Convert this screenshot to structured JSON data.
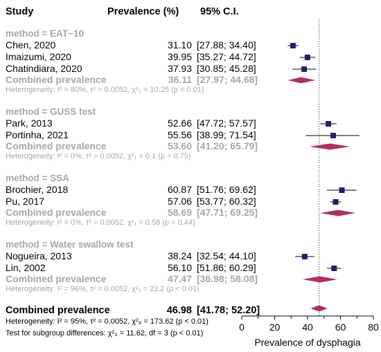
{
  "header": {
    "study": "Study",
    "prevalence": "Prevalence (%)",
    "ci": "95% C.I."
  },
  "groups": [
    {
      "label": "method = EAT−10",
      "studies": [
        {
          "name": "Chen, 2020",
          "est": "31.10",
          "ci": "[27.88; 34.40]"
        },
        {
          "name": "Imaizumi, 2020",
          "est": "39.95",
          "ci": "[35.27; 44.72]"
        },
        {
          "name": "Chatindiara, 2020",
          "est": "37.93",
          "ci": "[30.85; 45.28]"
        }
      ],
      "combined": {
        "label": "Combined prevalence",
        "est": "36.11",
        "ci": "[27.97; 44.68]"
      },
      "het": "Heterogeneity: I² = 80%, τ² = 0.0052, χ²₂ = 10.25 (p < 0.01)"
    },
    {
      "label": "method = GUSS test",
      "studies": [
        {
          "name": "Park, 2013",
          "est": "52.66",
          "ci": "[47.72; 57.57]"
        },
        {
          "name": "Portinha, 2021",
          "est": "55.56",
          "ci": "[38.99; 71.54]"
        }
      ],
      "combined": {
        "label": "Combined prevalence",
        "est": "53.60",
        "ci": "[41.20; 65.79]"
      },
      "het": "Heterogeneity: I² = 0%, τ² = 0.0052, χ²₁ = 0.1 (p = 0.75)"
    },
    {
      "label": "method = SSA",
      "studies": [
        {
          "name": "Brochier, 2018",
          "est": "60.87",
          "ci": "[51.76; 69.62]"
        },
        {
          "name": "Pu, 2017",
          "est": "57.06",
          "ci": "[53.77; 60.32]"
        }
      ],
      "combined": {
        "label": "Combined prevalence",
        "est": "58.69",
        "ci": "[47.71; 69.25]"
      },
      "het": "Heterogeneity: I² = 0%, τ² = 0.0052, χ²₁ = 0.58 (p = 0.44)"
    },
    {
      "label": "method = Water swallow test",
      "studies": [
        {
          "name": "Nogueira, 2013",
          "est": "38.24",
          "ci": "[32.54; 44.10]"
        },
        {
          "name": "Lin, 2002",
          "est": "56.10",
          "ci": "[51.86; 60.29]"
        }
      ],
      "combined": {
        "label": "Combined prevalence",
        "est": "47.47",
        "ci": "[36.98; 58.08]"
      },
      "het": "Heterogeneity: I² = 96%, τ² = 0.0052, χ²₁ = 23.2 (p < 0.01)"
    }
  ],
  "overall": {
    "label": "Combined prevalence",
    "est": "46.98",
    "ci": "[41.78; 52.20]",
    "het": "Heterogeneity: I² = 95%, τ² = 0.0052, χ²₈ = 173.62 (p < 0.01)",
    "subgroup_test": "Test for subgroup differences: χ²₃ = 11.62, df = 3 (p < 0.01)"
  },
  "chart_data": {
    "type": "forest",
    "xlabel": "Prevalence of dysphagia",
    "xlim": [
      0,
      80
    ],
    "xticks": [
      "0",
      "20",
      "40",
      "60",
      "80"
    ],
    "reference_line": 46.98,
    "study_points": [
      {
        "group": 0,
        "x": 31.1,
        "lo": 27.88,
        "hi": 34.4
      },
      {
        "group": 0,
        "x": 39.95,
        "lo": 35.27,
        "hi": 44.72
      },
      {
        "group": 0,
        "x": 37.93,
        "lo": 30.85,
        "hi": 45.28
      },
      {
        "group": 1,
        "x": 52.66,
        "lo": 47.72,
        "hi": 57.57
      },
      {
        "group": 1,
        "x": 55.56,
        "lo": 38.99,
        "hi": 71.54
      },
      {
        "group": 2,
        "x": 60.87,
        "lo": 51.76,
        "hi": 69.62
      },
      {
        "group": 2,
        "x": 57.06,
        "lo": 53.77,
        "hi": 60.32
      },
      {
        "group": 3,
        "x": 38.24,
        "lo": 32.54,
        "hi": 44.1
      },
      {
        "group": 3,
        "x": 56.1,
        "lo": 51.86,
        "hi": 60.29
      }
    ],
    "group_diamonds": [
      {
        "x": 36.11,
        "lo": 27.97,
        "hi": 44.68
      },
      {
        "x": 53.6,
        "lo": 41.2,
        "hi": 65.79
      },
      {
        "x": 58.69,
        "lo": 47.71,
        "hi": 69.25
      },
      {
        "x": 47.47,
        "lo": 36.98,
        "hi": 58.08
      }
    ],
    "overall_diamond": {
      "x": 46.98,
      "lo": 41.78,
      "hi": 52.2
    },
    "colors": {
      "square": "#1f1f6e",
      "diamond": "#b03060",
      "text_gray": "#a6a6a6"
    }
  }
}
